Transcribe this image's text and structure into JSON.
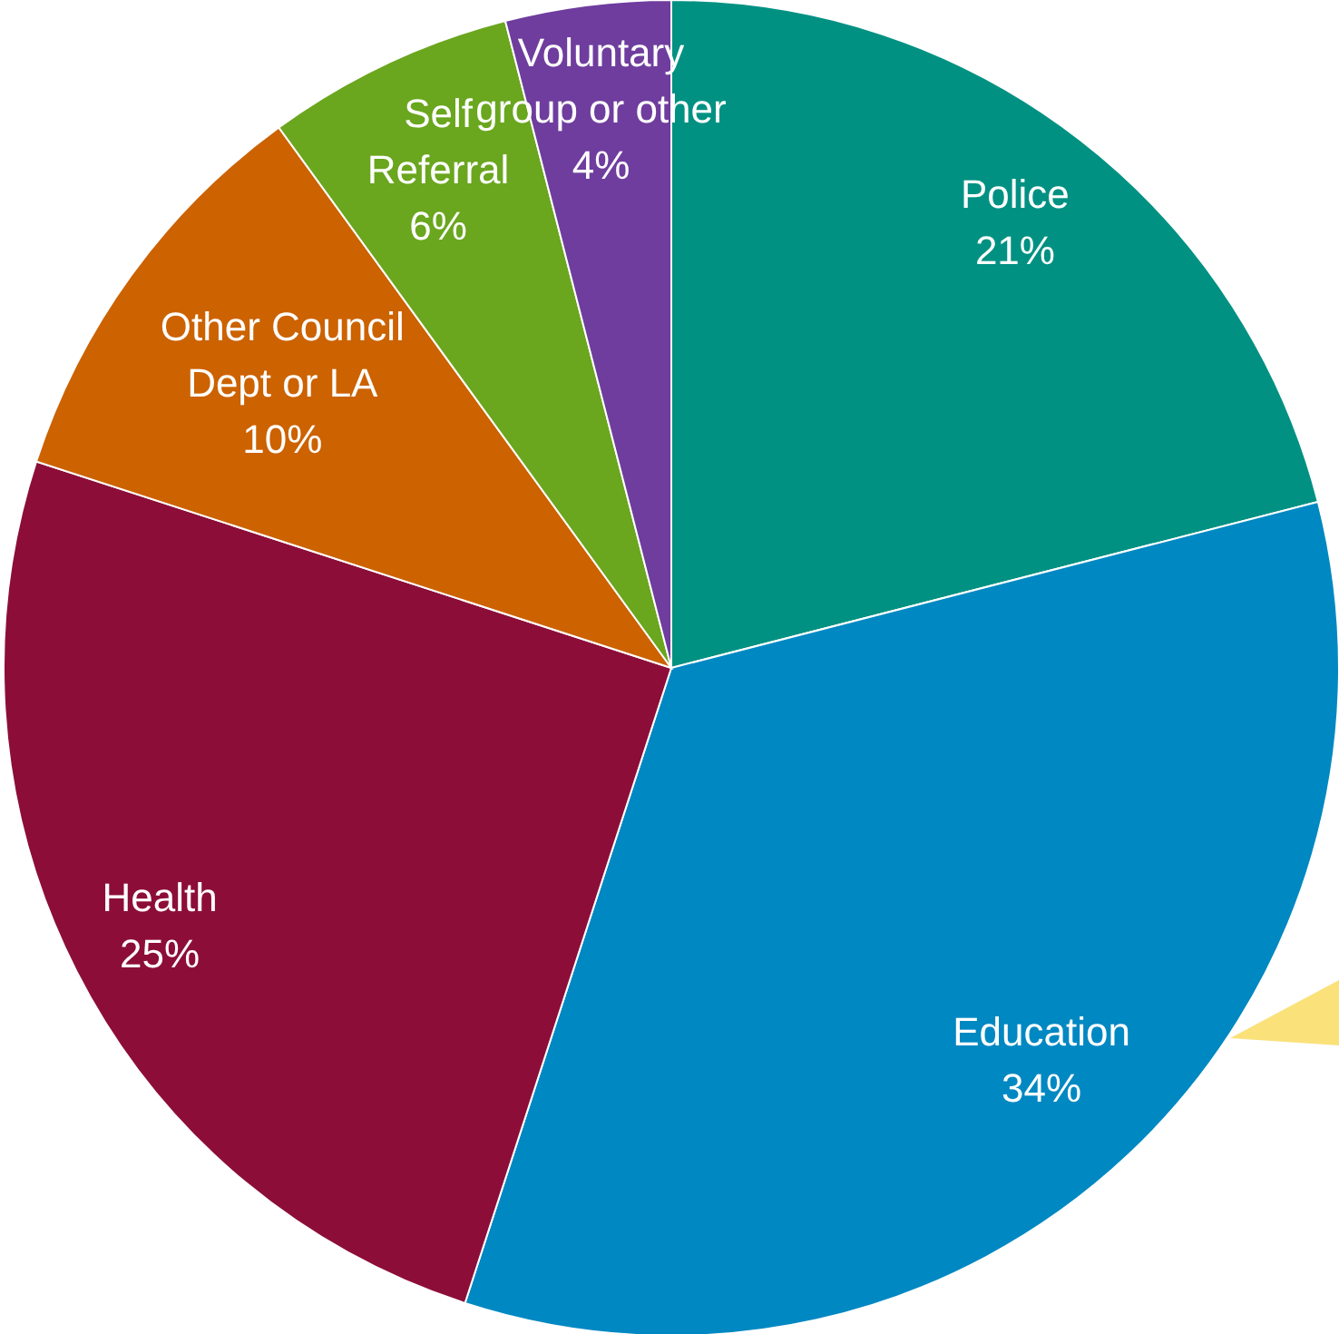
{
  "chart_data": {
    "type": "pie",
    "categories": [
      "Police",
      "Education",
      "Health",
      "Other Council Dept or LA",
      "Self Referral",
      "Voluntary group or other"
    ],
    "values": [
      21,
      34,
      25,
      10,
      6,
      4
    ],
    "colors": [
      "#009182",
      "#0088c2",
      "#8c0e38",
      "#cc6200",
      "#6aa61e",
      "#6f3d9e"
    ],
    "value_labels": [
      "21%",
      "34%",
      "25%",
      "10%",
      "6%",
      "4%"
    ]
  }
}
